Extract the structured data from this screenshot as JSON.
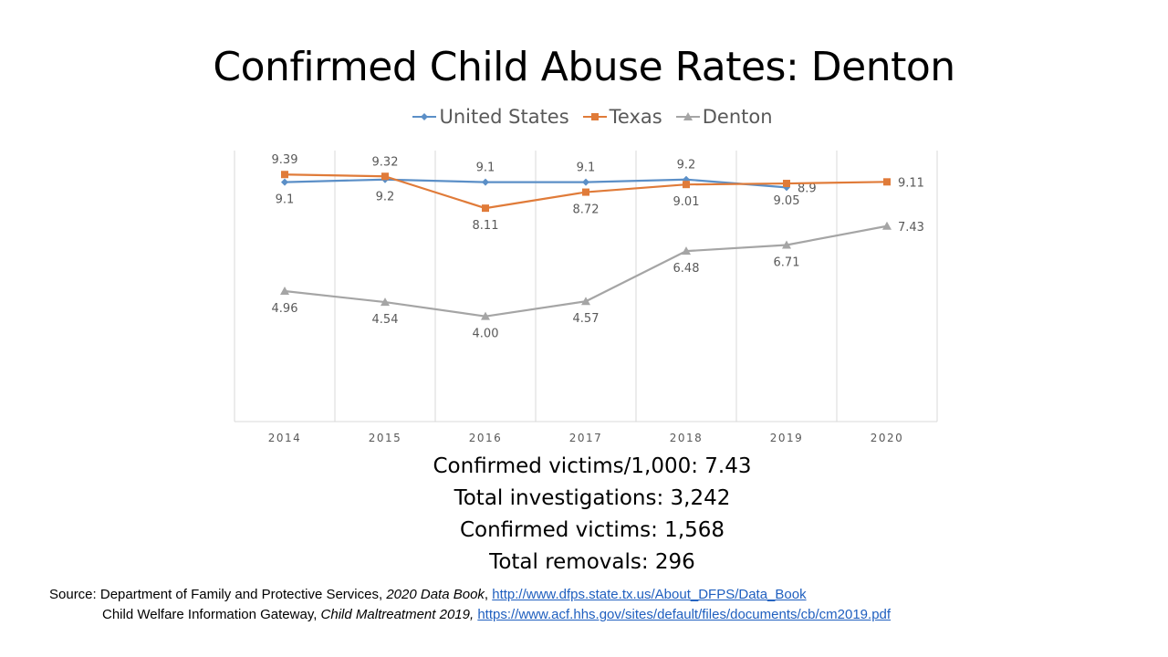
{
  "chart_data": {
    "type": "line",
    "title": "Confirmed Child Abuse Rates: Denton",
    "categories": [
      "2014",
      "2015",
      "2016",
      "2017",
      "2018",
      "2019",
      "2020"
    ],
    "series": [
      {
        "name": "United States",
        "color": "#5b8fc7",
        "marker": "diamond",
        "values": [
          9.1,
          9.2,
          9.1,
          9.1,
          9.2,
          8.9,
          null
        ],
        "labels": [
          "9.1",
          "9.2",
          "9.1",
          "9.1",
          "9.2",
          "8.9",
          null
        ]
      },
      {
        "name": "Texas",
        "color": "#e07b39",
        "marker": "square",
        "values": [
          9.39,
          9.32,
          8.11,
          8.72,
          9.01,
          9.05,
          9.11
        ],
        "labels": [
          "9.39",
          "9.32",
          "8.11",
          "8.72",
          "9.01",
          "9.05",
          "9.11"
        ]
      },
      {
        "name": "Denton",
        "color": "#a5a5a5",
        "marker": "triangle",
        "values": [
          4.96,
          4.54,
          4.0,
          4.57,
          6.48,
          6.71,
          7.43
        ],
        "labels": [
          "4.96",
          "4.54",
          "4.00",
          "4.57",
          "6.48",
          "6.71",
          "7.43"
        ]
      }
    ],
    "ylim": [
      0,
      10.3
    ],
    "xlabel": "",
    "ylabel": "",
    "grid": "vertical",
    "legend": "top"
  },
  "stats": {
    "victims_per_1000": "Confirmed victims/1,000: 7.43",
    "investigations": "Total investigations: 3,242",
    "victims": "Confirmed victims: 1,568",
    "removals": "Total removals: 296"
  },
  "source": {
    "label": "Source: Department of Family and Protective Services, ",
    "book1": "2020 Data Book",
    "sep1": ", ",
    "link1": "http://www.dfps.state.tx.us/About_DFPS/Data_Book",
    "org2": "Child Welfare Information Gateway, ",
    "book2": "Child Maltreatment 2019,",
    "sep2": " ",
    "link2": "https://www.acf.hhs.gov/sites/default/files/documents/cb/cm2019.pdf"
  }
}
